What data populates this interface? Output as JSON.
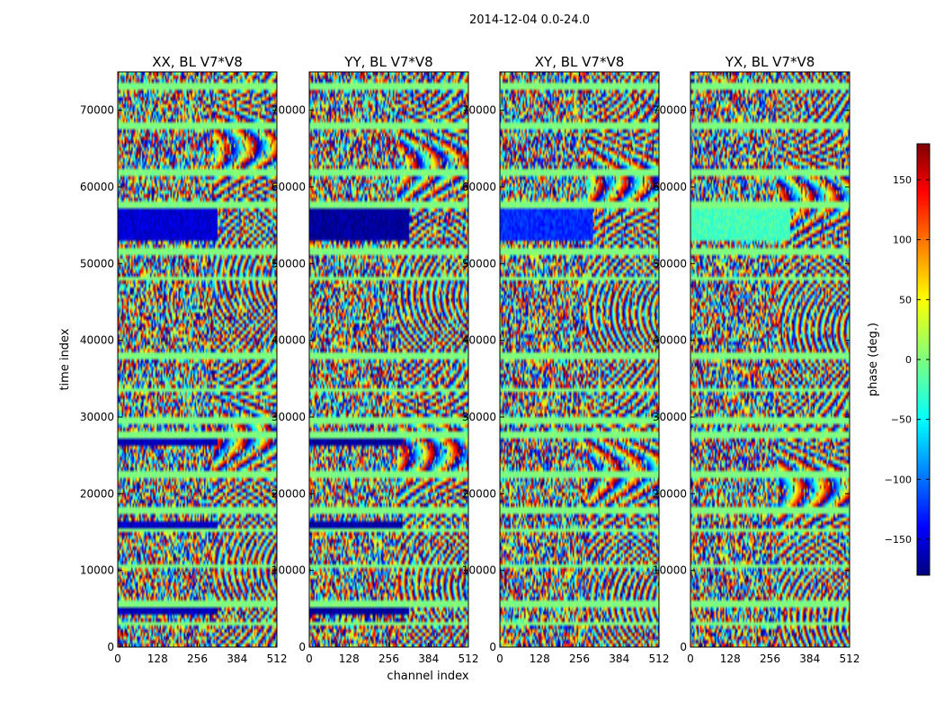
{
  "suptitle": "2014-12-04 0.0-24.0",
  "chart_data": {
    "type": "heatmap",
    "shared": {
      "xlabel": "channel index",
      "ylabel": "time index",
      "xlim": [
        0,
        512
      ],
      "ylim": [
        0,
        75000
      ],
      "xticks": [
        0,
        128,
        256,
        384,
        512
      ],
      "yticks": [
        0,
        10000,
        20000,
        30000,
        40000,
        50000,
        60000,
        70000
      ]
    },
    "panels": [
      {
        "title": "XX, BL V7*V8",
        "bands": [
          {
            "t0": 4200,
            "t1": 6200,
            "c0": 0,
            "c1": 320,
            "phase": -160
          },
          {
            "t0": 15500,
            "t1": 16500,
            "c0": 0,
            "c1": 320,
            "phase": -155
          },
          {
            "t0": 26200,
            "t1": 27200,
            "c0": 0,
            "c1": 320,
            "phase": -160
          },
          {
            "t0": 53000,
            "t1": 57000,
            "c0": 0,
            "c1": 320,
            "phase": -150
          }
        ],
        "fringe_start": 0.6
      },
      {
        "title": "YY, BL V7*V8",
        "bands": [
          {
            "t0": 4200,
            "t1": 6200,
            "c0": 0,
            "c1": 320,
            "phase": -170
          },
          {
            "t0": 15500,
            "t1": 16500,
            "c0": 0,
            "c1": 300,
            "phase": -165
          },
          {
            "t0": 26200,
            "t1": 27200,
            "c0": 0,
            "c1": 300,
            "phase": -170
          },
          {
            "t0": 53000,
            "t1": 57000,
            "c0": 0,
            "c1": 320,
            "phase": -170
          }
        ],
        "fringe_start": 0.55
      },
      {
        "title": "XY, BL V7*V8",
        "bands": [
          {
            "t0": 53000,
            "t1": 57000,
            "c0": 0,
            "c1": 300,
            "phase": -120
          }
        ],
        "fringe_start": 0.55
      },
      {
        "title": "YX, BL V7*V8",
        "bands": [
          {
            "t0": 53000,
            "t1": 57000,
            "c0": 0,
            "c1": 320,
            "phase": -20
          }
        ],
        "fringe_start": 0.55
      }
    ],
    "flag_rows": [
      3000,
      5800,
      10500,
      15200,
      17800,
      22500,
      27500,
      29500,
      33500,
      38000,
      48000,
      51500,
      57500,
      62000,
      68000,
      73000
    ],
    "colorbar": {
      "label": "phase (deg.)",
      "range": [
        -180,
        180
      ],
      "ticks": [
        150,
        100,
        50,
        0,
        -50,
        -100,
        -150
      ],
      "colormap": "jet"
    }
  }
}
